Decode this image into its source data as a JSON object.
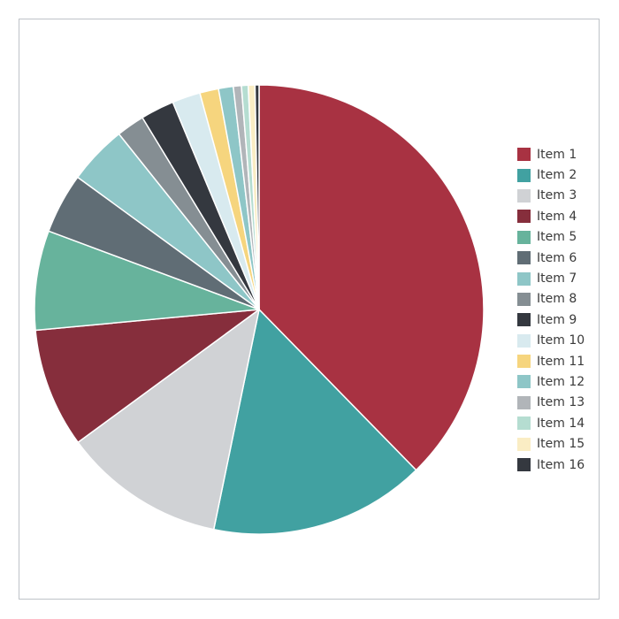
{
  "chart_data": {
    "type": "pie",
    "title": "",
    "legend_position": "right",
    "start_angle_deg": 0,
    "direction": "clockwise",
    "categories": [
      "Item 1",
      "Item 2",
      "Item 3",
      "Item 4",
      "Item 5",
      "Item 6",
      "Item 7",
      "Item 8",
      "Item 9",
      "Item 10",
      "Item 11",
      "Item 12",
      "Item 13",
      "Item 14",
      "Item 15",
      "Item 16"
    ],
    "values": [
      39.0,
      16.1,
      12.1,
      8.9,
      7.4,
      4.5,
      4.4,
      2.1,
      2.5,
      2.1,
      1.4,
      1.1,
      0.6,
      0.5,
      0.5,
      0.3
    ],
    "colors": [
      "#a83242",
      "#41a1a1",
      "#d0d2d5",
      "#862e3c",
      "#67b39c",
      "#606d75",
      "#8ec6c7",
      "#858e93",
      "#34383f",
      "#d8eaef",
      "#f6d57e",
      "#8ec6c7",
      "#b1b5b9",
      "#b5ddd1",
      "#faedc4",
      "#34383f"
    ]
  }
}
